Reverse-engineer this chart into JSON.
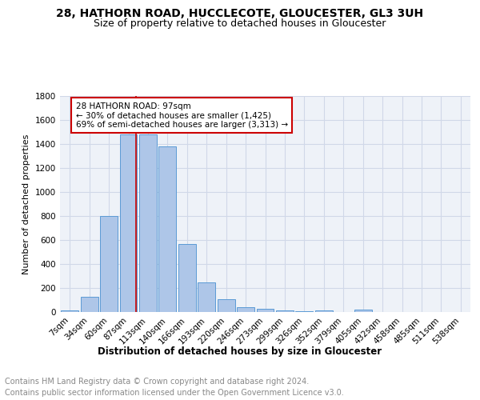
{
  "title": "28, HATHORN ROAD, HUCCLECOTE, GLOUCESTER, GL3 3UH",
  "subtitle": "Size of property relative to detached houses in Gloucester",
  "xlabel": "Distribution of detached houses by size in Gloucester",
  "ylabel": "Number of detached properties",
  "footer_line1": "Contains HM Land Registry data © Crown copyright and database right 2024.",
  "footer_line2": "Contains public sector information licensed under the Open Government Licence v3.0.",
  "categories": [
    "7sqm",
    "34sqm",
    "60sqm",
    "87sqm",
    "113sqm",
    "140sqm",
    "166sqm",
    "193sqm",
    "220sqm",
    "246sqm",
    "273sqm",
    "299sqm",
    "326sqm",
    "352sqm",
    "379sqm",
    "405sqm",
    "432sqm",
    "458sqm",
    "485sqm",
    "511sqm",
    "538sqm"
  ],
  "values": [
    15,
    130,
    800,
    1480,
    1480,
    1380,
    570,
    245,
    110,
    40,
    25,
    15,
    10,
    15,
    0,
    20,
    0,
    0,
    0,
    0,
    0
  ],
  "bar_color": "#aec6e8",
  "bar_edge_color": "#5b9bd5",
  "grid_color": "#d0d8e8",
  "background_color": "#eef2f8",
  "vline_color": "#cc0000",
  "annotation_text": "28 HATHORN ROAD: 97sqm\n← 30% of detached houses are smaller (1,425)\n69% of semi-detached houses are larger (3,313) →",
  "ylim": [
    0,
    1800
  ],
  "yticks": [
    0,
    200,
    400,
    600,
    800,
    1000,
    1200,
    1400,
    1600,
    1800
  ],
  "title_fontsize": 10,
  "subtitle_fontsize": 9,
  "ylabel_fontsize": 8,
  "xlabel_fontsize": 8.5,
  "tick_fontsize": 7.5,
  "annotation_fontsize": 7.5,
  "footer_fontsize": 7
}
